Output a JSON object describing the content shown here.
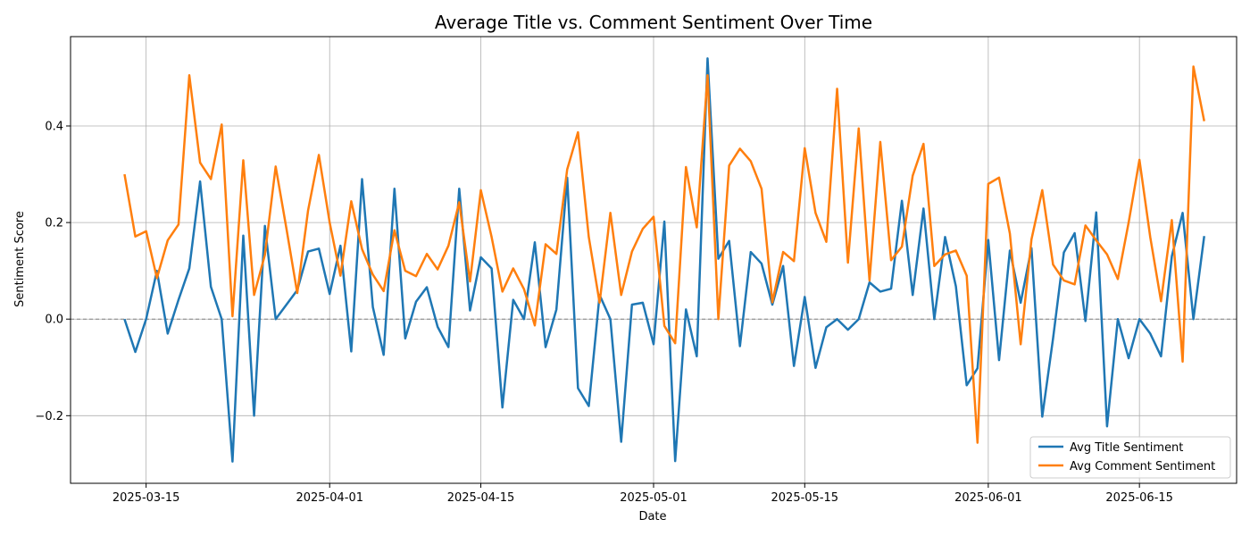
{
  "chart_data": {
    "type": "line",
    "title": "Average Title vs. Comment Sentiment Over Time",
    "xlabel": "Date",
    "ylabel": "Sentiment Score",
    "xlim": [
      "2025-03-08",
      "2025-06-24"
    ],
    "ylim": [
      -0.34,
      0.585
    ],
    "xticks": [
      "2025-03-15",
      "2025-04-01",
      "2025-04-15",
      "2025-05-01",
      "2025-05-15",
      "2025-06-01",
      "2025-06-15"
    ],
    "yticks": [
      -0.2,
      0.0,
      0.2,
      0.4
    ],
    "ytick_labels": [
      "−0.2",
      "0.0",
      "0.2",
      "0.4"
    ],
    "grid": true,
    "reference_line": 0.0,
    "legend": "lower-right",
    "x": [
      "2025-03-13",
      "2025-03-14",
      "2025-03-15",
      "2025-03-16",
      "2025-03-17",
      "2025-03-18",
      "2025-03-19",
      "2025-03-20",
      "2025-03-21",
      "2025-03-22",
      "2025-03-23",
      "2025-03-24",
      "2025-03-25",
      "2025-03-26",
      "2025-03-27",
      "2025-03-28",
      "2025-03-29",
      "2025-03-30",
      "2025-03-31",
      "2025-04-01",
      "2025-04-02",
      "2025-04-03",
      "2025-04-04",
      "2025-04-05",
      "2025-04-06",
      "2025-04-07",
      "2025-04-08",
      "2025-04-09",
      "2025-04-10",
      "2025-04-11",
      "2025-04-12",
      "2025-04-13",
      "2025-04-14",
      "2025-04-15",
      "2025-04-16",
      "2025-04-17",
      "2025-04-18",
      "2025-04-19",
      "2025-04-20",
      "2025-04-21",
      "2025-04-22",
      "2025-04-23",
      "2025-04-24",
      "2025-04-25",
      "2025-04-26",
      "2025-04-27",
      "2025-04-28",
      "2025-04-29",
      "2025-04-30",
      "2025-05-01",
      "2025-05-02",
      "2025-05-03",
      "2025-05-04",
      "2025-05-05",
      "2025-05-06",
      "2025-05-07",
      "2025-05-08",
      "2025-05-09",
      "2025-05-10",
      "2025-05-11",
      "2025-05-12",
      "2025-05-13",
      "2025-05-14",
      "2025-05-15",
      "2025-05-16",
      "2025-05-17",
      "2025-05-18",
      "2025-05-19",
      "2025-05-20",
      "2025-05-21",
      "2025-05-22",
      "2025-05-23",
      "2025-05-24",
      "2025-05-25",
      "2025-05-26",
      "2025-05-27",
      "2025-05-28",
      "2025-05-29",
      "2025-05-30",
      "2025-05-31",
      "2025-06-01",
      "2025-06-02",
      "2025-06-03",
      "2025-06-04",
      "2025-06-05",
      "2025-06-06",
      "2025-06-07",
      "2025-06-08",
      "2025-06-09",
      "2025-06-10",
      "2025-06-11",
      "2025-06-12",
      "2025-06-13",
      "2025-06-14",
      "2025-06-15",
      "2025-06-16",
      "2025-06-17",
      "2025-06-18",
      "2025-06-19",
      "2025-06-20",
      "2025-06-21"
    ],
    "series": [
      {
        "name": "Avg Title Sentiment",
        "color": "#1f77b4",
        "values": [
          0.0,
          -0.068,
          0.0,
          0.1,
          -0.03,
          0.04,
          0.105,
          0.285,
          0.067,
          0.0,
          -0.295,
          0.173,
          -0.2,
          0.193,
          0.0,
          0.03,
          0.06,
          0.14,
          0.146,
          0.052,
          0.152,
          -0.067,
          0.29,
          0.025,
          -0.074,
          0.27,
          -0.04,
          0.036,
          0.066,
          -0.016,
          -0.058,
          0.27,
          0.018,
          0.128,
          0.105,
          -0.183,
          0.04,
          0.0,
          0.159,
          -0.058,
          0.02,
          0.293,
          -0.143,
          -0.18,
          0.05,
          0.0,
          -0.254,
          0.03,
          0.034,
          -0.052,
          0.202,
          -0.294,
          0.02,
          -0.077,
          0.54,
          0.125,
          0.162,
          -0.056,
          0.139,
          0.115,
          0.03,
          0.11,
          -0.097,
          0.046,
          -0.101,
          -0.017,
          0.0,
          -0.022,
          0.0,
          0.076,
          0.057,
          0.063,
          0.245,
          0.05,
          0.229,
          0.0,
          0.17,
          0.068,
          -0.137,
          -0.102,
          0.164,
          -0.085,
          0.142,
          0.034,
          0.147,
          -0.202,
          -0.04,
          0.138,
          0.178,
          -0.004,
          0.221,
          -0.222,
          0.0,
          -0.081,
          0.0,
          -0.03,
          -0.077,
          0.13,
          0.22,
          0.0,
          0.172
        ]
      },
      {
        "name": "Avg Comment Sentiment",
        "color": "#ff7f0e",
        "values": [
          0.3,
          0.171,
          0.182,
          0.085,
          0.163,
          0.196,
          0.505,
          0.324,
          0.29,
          0.403,
          0.006,
          0.329,
          0.05,
          0.133,
          0.316,
          0.187,
          0.054,
          0.225,
          0.34,
          0.2,
          0.09,
          0.244,
          0.145,
          0.092,
          0.058,
          0.184,
          0.1,
          0.089,
          0.135,
          0.103,
          0.152,
          0.242,
          0.078,
          0.267,
          0.17,
          0.057,
          0.105,
          0.062,
          -0.013,
          0.155,
          0.135,
          0.31,
          0.387,
          0.17,
          0.034,
          0.22,
          0.05,
          0.14,
          0.187,
          0.212,
          -0.014,
          -0.05,
          0.315,
          0.19,
          0.505,
          0.0,
          0.318,
          0.353,
          0.327,
          0.27,
          0.035,
          0.139,
          0.12,
          0.354,
          0.22,
          0.16,
          0.477,
          0.117,
          0.395,
          0.08,
          0.367,
          0.122,
          0.15,
          0.297,
          0.363,
          0.11,
          0.134,
          0.142,
          0.09,
          -0.256,
          0.28,
          0.293,
          0.177,
          -0.052,
          0.165,
          0.267,
          0.113,
          0.08,
          0.072,
          0.194,
          0.163,
          0.134,
          0.083,
          0.2,
          0.33,
          0.17,
          0.037,
          0.205,
          -0.088,
          0.523,
          0.41
        ]
      }
    ]
  }
}
